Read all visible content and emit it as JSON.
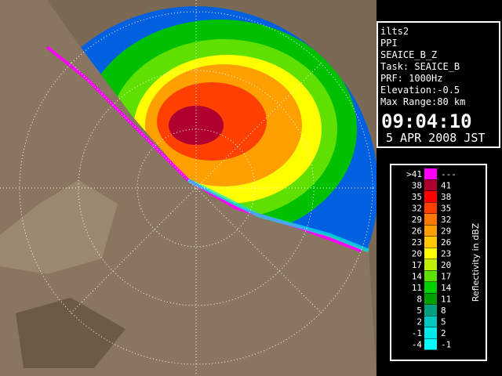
{
  "panel": {
    "lines": [
      "ilts2",
      "PPI",
      "SEAICE_B_Z",
      "Task: SEAICE_B",
      "PRF: 1000Hz",
      "Elevation:-0.5",
      "Max Range:80 km"
    ],
    "time": "09:04:10",
    "date": "5 APR 2008 JST"
  },
  "legend": {
    "title": "Reflectivity in dBZ",
    "rows": [
      {
        "from": ">41",
        "to": "---",
        "color": "#ff00ff"
      },
      {
        "from": "38",
        "to": "41",
        "color": "#b00030"
      },
      {
        "from": "35",
        "to": "38",
        "color": "#ff0000"
      },
      {
        "from": "32",
        "to": "35",
        "color": "#ff4000"
      },
      {
        "from": "29",
        "to": "32",
        "color": "#ff7800"
      },
      {
        "from": "26",
        "to": "29",
        "color": "#ffa000"
      },
      {
        "from": "23",
        "to": "26",
        "color": "#ffc800"
      },
      {
        "from": "20",
        "to": "23",
        "color": "#ffff00"
      },
      {
        "from": "17",
        "to": "20",
        "color": "#c0f000"
      },
      {
        "from": "14",
        "to": "17",
        "color": "#60e000"
      },
      {
        "from": "11",
        "to": "14",
        "color": "#00d000"
      },
      {
        "from": "8",
        "to": "11",
        "color": "#00a000"
      },
      {
        "from": "5",
        "to": "8",
        "color": "#00a080"
      },
      {
        "from": "2",
        "to": "5",
        "color": "#00c8c0"
      },
      {
        "from": "-1",
        "to": "2",
        "color": "#00e8e8"
      },
      {
        "from": "-4",
        "to": "-1",
        "color": "#00ffff"
      }
    ]
  }
}
